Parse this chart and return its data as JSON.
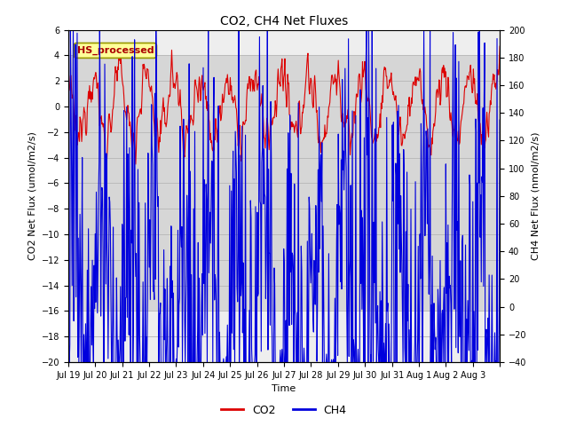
{
  "title": "CO2, CH4 Net Fluxes",
  "xlabel": "Time",
  "ylabel_left": "CO2 Net Flux (umol/m2/s)",
  "ylabel_right": "CH4 Net Flux (nmol/m2/s)",
  "ylim_left": [
    -20,
    6
  ],
  "ylim_right": [
    -40,
    200
  ],
  "yticks_left": [
    -20,
    -18,
    -16,
    -14,
    -12,
    -10,
    -8,
    -6,
    -4,
    -2,
    0,
    2,
    4,
    6
  ],
  "yticks_right": [
    -40,
    -20,
    0,
    20,
    40,
    60,
    80,
    100,
    120,
    140,
    160,
    180,
    200
  ],
  "co2_color": "#dd0000",
  "ch4_color": "#0000dd",
  "legend_label_co2": "CO2",
  "legend_label_ch4": "CH4",
  "annotation_text": "HS_processed",
  "annotation_bg": "#ffff99",
  "annotation_edge": "#999900",
  "annotation_text_color": "#aa0000",
  "grid_color": "#bbbbbb",
  "plot_bg": "#eeeeee",
  "shaded_low": -16,
  "shaded_high": 4,
  "shaded_color": "#d0d0d0",
  "linewidth": 0.8,
  "seed": 12345,
  "n_days": 16,
  "pts_per_day": 48
}
